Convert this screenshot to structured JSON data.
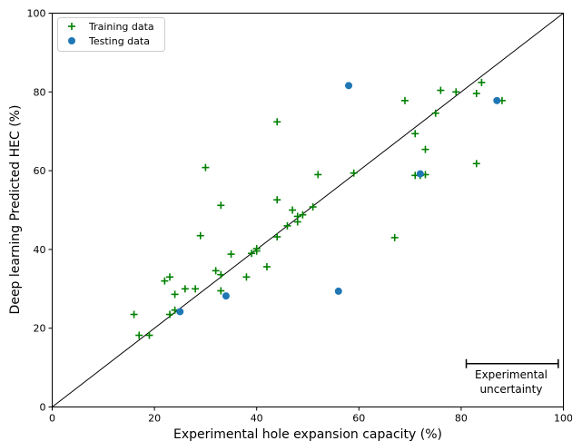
{
  "chart_data": {
    "type": "scatter",
    "xlabel": "Experimental hole expansion capacity (%)",
    "ylabel": "Deep learning Predicted HEC (%)",
    "xlim": [
      0,
      100
    ],
    "ylim": [
      0,
      100
    ],
    "xticks": [
      0,
      20,
      40,
      60,
      80,
      100
    ],
    "yticks": [
      0,
      20,
      40,
      60,
      80,
      100
    ],
    "grid": false,
    "legend_position": "top-left",
    "reference_line": {
      "from": [
        0,
        0
      ],
      "to": [
        100,
        100
      ]
    },
    "series": [
      {
        "name": "Training data",
        "marker": "plus",
        "color": "#008000",
        "points": [
          [
            16,
            23.5
          ],
          [
            17,
            18.2
          ],
          [
            19,
            18.2
          ],
          [
            22,
            32
          ],
          [
            23,
            33
          ],
          [
            23,
            23.5
          ],
          [
            24,
            28.6
          ],
          [
            24,
            24.6
          ],
          [
            26,
            30
          ],
          [
            28,
            30
          ],
          [
            29,
            43.5
          ],
          [
            30,
            60.8
          ],
          [
            32,
            34.6
          ],
          [
            33,
            33.6
          ],
          [
            33,
            29.5
          ],
          [
            33,
            51.2
          ],
          [
            35,
            38.8
          ],
          [
            38,
            33
          ],
          [
            39,
            39
          ],
          [
            40,
            40.2
          ],
          [
            40,
            39.6
          ],
          [
            42,
            35.6
          ],
          [
            44,
            72.4
          ],
          [
            44,
            52.6
          ],
          [
            44,
            43.2
          ],
          [
            46,
            46
          ],
          [
            47,
            50
          ],
          [
            48,
            47
          ],
          [
            48,
            48.4
          ],
          [
            49,
            48.8
          ],
          [
            51,
            50.8
          ],
          [
            52,
            59
          ],
          [
            59,
            59.4
          ],
          [
            67,
            43
          ],
          [
            69,
            77.8
          ],
          [
            71,
            69.4
          ],
          [
            71,
            58.8
          ],
          [
            72,
            58.8
          ],
          [
            73,
            65.4
          ],
          [
            73,
            59
          ],
          [
            75,
            74.6
          ],
          [
            76,
            80.4
          ],
          [
            79,
            80
          ],
          [
            83,
            79.6
          ],
          [
            83,
            61.8
          ],
          [
            84,
            82.4
          ],
          [
            88,
            77.8
          ]
        ]
      },
      {
        "name": "Testing data",
        "marker": "circle",
        "color": "#1f77b4",
        "points": [
          [
            25,
            24.2
          ],
          [
            34,
            28.2
          ],
          [
            56,
            29.4
          ],
          [
            58,
            81.6
          ],
          [
            72,
            59.2
          ],
          [
            87,
            77.8
          ]
        ]
      }
    ],
    "annotation": {
      "lines": [
        "Experimental",
        "uncertainty"
      ],
      "range": [
        81,
        99
      ],
      "y": 11
    }
  }
}
